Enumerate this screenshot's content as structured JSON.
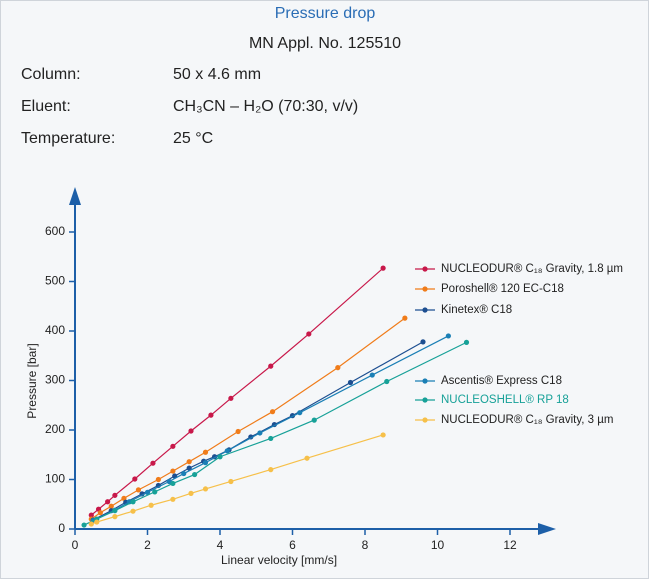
{
  "header": {
    "title": "Pressure drop",
    "subtitle": "MN Appl. No. 125510",
    "rows": [
      [
        "Column:",
        "50 x 4.6 mm"
      ],
      [
        "Eluent:",
        "CH₃CN – H₂O (70:30, v/v)"
      ],
      [
        "Temperature:",
        "25 °C"
      ]
    ]
  },
  "chart_data": {
    "type": "line",
    "x_label": "Linear velocity [mm/s]",
    "y_label": "Pressure [bar]",
    "xlim": [
      0,
      12
    ],
    "xticks": [
      0,
      2,
      4,
      6,
      8,
      10,
      12
    ],
    "ylim": [
      0,
      600
    ],
    "yticks": [
      0,
      100,
      200,
      300,
      400,
      500,
      600
    ],
    "series": [
      {
        "name": "NUCLEODUR® C₁₈ Gravity, 1.8 µm",
        "color": "#c8184a",
        "x": [
          0.45,
          0.65,
          0.9,
          1.1,
          1.65,
          2.15,
          2.7,
          3.2,
          3.75,
          4.3,
          5.4,
          6.45,
          8.5
        ],
        "values": [
          28,
          40,
          55,
          68,
          101,
          133,
          167,
          198,
          230,
          264,
          329,
          394,
          527
        ]
      },
      {
        "name": "Poroshell® 120 EC-C18",
        "color": "#f07c1a",
        "x": [
          0.45,
          0.7,
          1.0,
          1.35,
          1.75,
          2.3,
          2.7,
          3.15,
          3.6,
          4.5,
          5.45,
          7.25,
          9.1
        ],
        "values": [
          20,
          33,
          46,
          62,
          79,
          100,
          117,
          136,
          155,
          197,
          237,
          326,
          426
        ]
      },
      {
        "name": "Kinetex® C18",
        "color": "#1d4f91",
        "x": [
          0.5,
          1.0,
          1.4,
          1.85,
          2.3,
          2.75,
          3.15,
          3.55,
          3.85,
          4.25,
          4.85,
          5.5,
          6.0,
          7.6,
          9.6
        ],
        "values": [
          18,
          37,
          54,
          71,
          88,
          107,
          123,
          137,
          146,
          160,
          186,
          211,
          229,
          296,
          378
        ]
      },
      {
        "name": "Ascentis® Express C18",
        "color": "#1a7fb5",
        "x": [
          0.5,
          1.1,
          1.5,
          2.0,
          2.6,
          3.0,
          3.6,
          4.2,
          5.1,
          6.2,
          8.2,
          10.3
        ],
        "values": [
          17,
          38,
          55,
          74,
          96,
          112,
          134,
          158,
          194,
          235,
          311,
          390
        ]
      },
      {
        "name": "NUCLEOSHELL® RP 18",
        "color": "#17a198",
        "x": [
          0.25,
          0.6,
          1.1,
          1.6,
          2.2,
          2.7,
          3.3,
          4.0,
          5.4,
          6.6,
          8.6,
          10.8
        ],
        "values": [
          8,
          20,
          37,
          55,
          75,
          92,
          110,
          146,
          183,
          220,
          298,
          377
        ]
      },
      {
        "name": "NUCLEODUR® C₁₈ Gravity, 3 µm",
        "color": "#f6c04a",
        "x": [
          0.45,
          0.6,
          1.1,
          1.6,
          2.1,
          2.7,
          3.2,
          3.6,
          4.3,
          5.4,
          6.4,
          8.5
        ],
        "values": [
          10,
          14,
          25,
          36,
          48,
          60,
          72,
          81,
          96,
          120,
          143,
          190
        ]
      }
    ]
  }
}
